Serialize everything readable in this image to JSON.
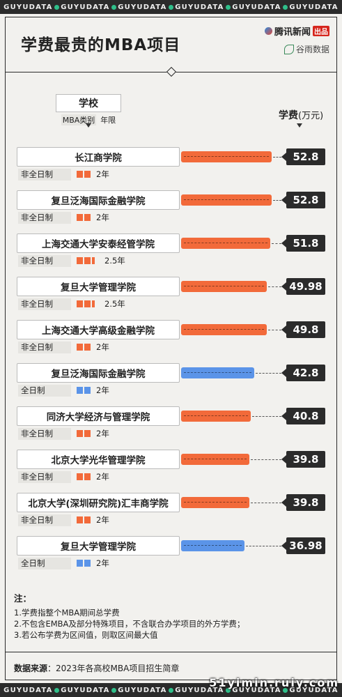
{
  "strip_word": "GUYUDATA",
  "title": "学费最贵的MBA项目",
  "brand": {
    "name": "腾讯新闻",
    "tag": "出品",
    "partner": "谷雨数据"
  },
  "legend": {
    "school": "学校",
    "type": "MBA类别",
    "years": "年限"
  },
  "fee_head": {
    "label": "学费",
    "unit": "(万元)"
  },
  "colors": {
    "parttime": "#f26a3a",
    "fulltime": "#5b94e8",
    "dark": "#2b2b2b"
  },
  "chart_data": {
    "type": "bar",
    "orientation": "horizontal",
    "title": "学费最贵的MBA项目",
    "value_label": "学费(万元)",
    "xlim": [
      0,
      52.8
    ],
    "categories": [
      "长江商学院",
      "复旦泛海国际金融学院",
      "上海交通大学安泰经管学院",
      "复旦大学管理学院",
      "上海交通大学高级金融学院",
      "复旦泛海国际金融学院",
      "同济大学经济与管理学院",
      "北京大学光华管理学院",
      "北京大学(深圳研究院)汇丰商学院",
      "复旦大学管理学院"
    ],
    "rows": [
      {
        "school": "长江商学院",
        "type": "非全日制",
        "years": "2年",
        "squares": 2,
        "partial": false,
        "value": 52.8,
        "label": "52.8",
        "kind": "parttime"
      },
      {
        "school": "复旦泛海国际金融学院",
        "type": "非全日制",
        "years": "2年",
        "squares": 2,
        "partial": false,
        "value": 52.8,
        "label": "52.8",
        "kind": "parttime"
      },
      {
        "school": "上海交通大学安泰经管学院",
        "type": "非全日制",
        "years": "2.5年",
        "squares": 2,
        "partial": true,
        "value": 51.8,
        "label": "51.8",
        "kind": "parttime"
      },
      {
        "school": "复旦大学管理学院",
        "type": "非全日制",
        "years": "2.5年",
        "squares": 2,
        "partial": true,
        "value": 49.98,
        "label": "49.98",
        "kind": "parttime"
      },
      {
        "school": "上海交通大学高级金融学院",
        "type": "非全日制",
        "years": "2年",
        "squares": 2,
        "partial": false,
        "value": 49.8,
        "label": "49.8",
        "kind": "parttime"
      },
      {
        "school": "复旦泛海国际金融学院",
        "type": "全日制",
        "years": "2年",
        "squares": 2,
        "partial": false,
        "value": 42.8,
        "label": "42.8",
        "kind": "fulltime"
      },
      {
        "school": "同济大学经济与管理学院",
        "type": "非全日制",
        "years": "2年",
        "squares": 2,
        "partial": false,
        "value": 40.8,
        "label": "40.8",
        "kind": "parttime"
      },
      {
        "school": "北京大学光华管理学院",
        "type": "非全日制",
        "years": "2年",
        "squares": 2,
        "partial": false,
        "value": 39.8,
        "label": "39.8",
        "kind": "parttime"
      },
      {
        "school": "北京大学(深圳研究院)汇丰商学院",
        "type": "非全日制",
        "years": "2年",
        "squares": 2,
        "partial": false,
        "value": 39.8,
        "label": "39.8",
        "kind": "parttime"
      },
      {
        "school": "复旦大学管理学院",
        "type": "全日制",
        "years": "2年",
        "squares": 2,
        "partial": false,
        "value": 36.98,
        "label": "36.98",
        "kind": "fulltime"
      }
    ]
  },
  "notes": {
    "heading": "注：",
    "items": [
      "1.学费指整个MBA期间总学费",
      "2.不包含EMBA及部分特殊项目，不含联合办学项目的外方学费；",
      "3.若公布学费为区间值，则取区间最大值"
    ]
  },
  "source": {
    "label": "数据来源",
    "text": "：2023年各高校MBA项目招生简章"
  },
  "watermark": "51yimin.ruiy.com"
}
